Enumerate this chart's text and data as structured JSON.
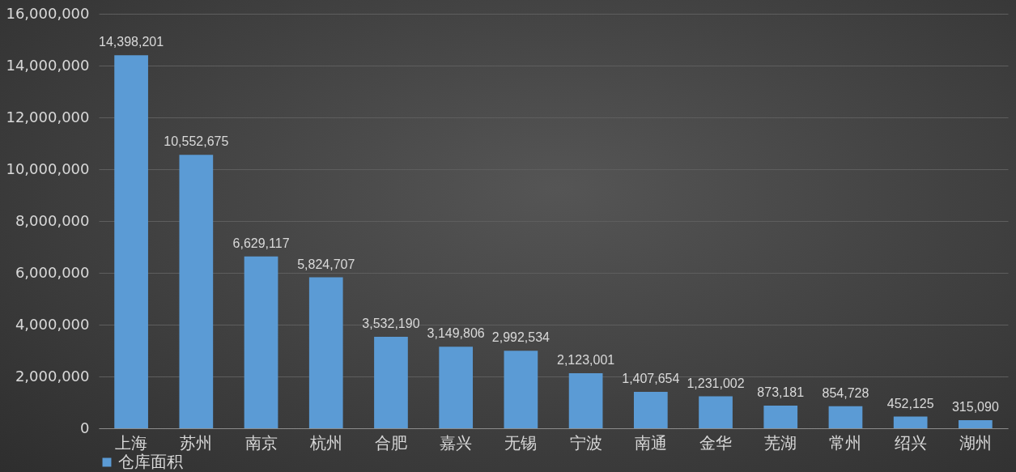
{
  "chart_data": {
    "type": "bar",
    "categories": [
      "上海",
      "苏州",
      "南京",
      "杭州",
      "合肥",
      "嘉兴",
      "无锡",
      "宁波",
      "南通",
      "金华",
      "芜湖",
      "常州",
      "绍兴",
      "湖州"
    ],
    "series": [
      {
        "name": "仓库面积",
        "color": "#5b9bd5",
        "values": [
          14398201,
          10552675,
          6629117,
          5824707,
          3532190,
          3149806,
          2992534,
          2123001,
          1407654,
          1231002,
          873181,
          854728,
          452125,
          315090
        ]
      }
    ],
    "ylim": [
      0,
      16000000
    ],
    "yticks": [
      {
        "value": 0,
        "label": "0"
      },
      {
        "value": 2000000,
        "label": "2,000,000"
      },
      {
        "value": 4000000,
        "label": "4,000,000"
      },
      {
        "value": 6000000,
        "label": "6,000,000"
      },
      {
        "value": 8000000,
        "label": "8,000,000"
      },
      {
        "value": 10000000,
        "label": "10,000,000"
      },
      {
        "value": 12000000,
        "label": "12,000,000"
      },
      {
        "value": 14000000,
        "label": "14,000,000"
      },
      {
        "value": 16000000,
        "label": "16,000,000"
      }
    ],
    "value_labels": [
      "14,398,201",
      "10,552,675",
      "6,629,117",
      "5,824,707",
      "3,532,190",
      "3,149,806",
      "2,992,534",
      "2,123,001",
      "1,407,654",
      "1,231,002",
      "873,181",
      "854,728",
      "452,125",
      "315,090"
    ],
    "grid": "y",
    "legend": "bottom"
  }
}
